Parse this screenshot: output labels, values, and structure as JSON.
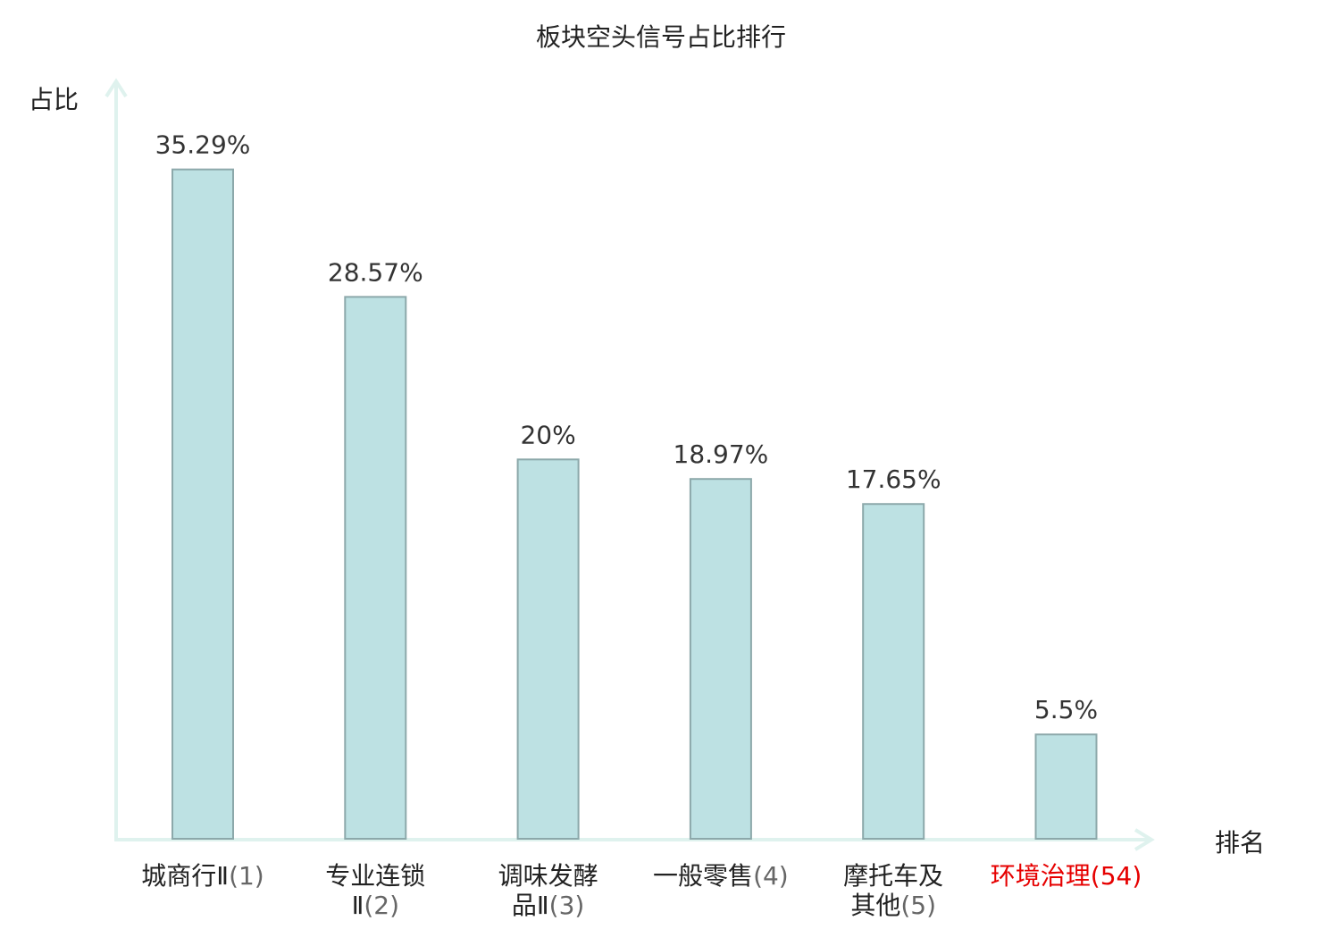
{
  "chart_data": {
    "type": "bar",
    "title": "板块空头信号占比排行",
    "ylabel": "占比",
    "xlabel": "排名",
    "ylim": [
      0,
      37.3
    ],
    "categories": [
      {
        "name": "城商行Ⅱ",
        "rank": "(1)",
        "value": 35.29,
        "label": "35.29%",
        "highlight": false
      },
      {
        "name": "专业连锁Ⅱ",
        "rank": "(2)",
        "value": 28.57,
        "label": "28.57%",
        "highlight": false
      },
      {
        "name": "调味发酵品Ⅱ",
        "rank": "(3)",
        "value": 20,
        "label": "20%",
        "highlight": false
      },
      {
        "name": "一般零售",
        "rank": "(4)",
        "value": 18.97,
        "label": "18.97%",
        "highlight": false
      },
      {
        "name": "摩托车及其他",
        "rank": "(5)",
        "value": 17.65,
        "label": "17.65%",
        "highlight": false
      },
      {
        "name": "环境治理",
        "rank": "(54)",
        "value": 5.5,
        "label": "5.5%",
        "highlight": true
      }
    ],
    "colors": {
      "bar_fill": "#bde1e3",
      "bar_stroke": "#8ca8aa",
      "axis": "#dff2ee",
      "label": "#333333",
      "highlight": "#e60000"
    },
    "grid": false,
    "legend": "none"
  }
}
